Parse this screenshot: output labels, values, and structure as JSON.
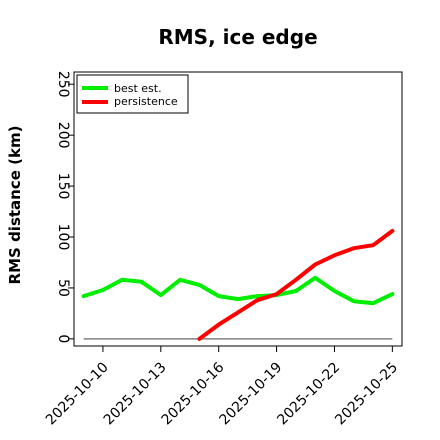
{
  "chart_data": {
    "type": "line",
    "title": "RMS, ice edge",
    "xlabel": "",
    "ylabel": "RMS distance (km)",
    "x": [
      "2025-10-09",
      "2025-10-10",
      "2025-10-11",
      "2025-10-12",
      "2025-10-13",
      "2025-10-14",
      "2025-10-15",
      "2025-10-16",
      "2025-10-17",
      "2025-10-18",
      "2025-10-19",
      "2025-10-20",
      "2025-10-21",
      "2025-10-22",
      "2025-10-23",
      "2025-10-24",
      "2025-10-25"
    ],
    "xticks": [
      "2025-10-10",
      "2025-10-13",
      "2025-10-16",
      "2025-10-19",
      "2025-10-22",
      "2025-10-25"
    ],
    "yticks": [
      0,
      50,
      100,
      150,
      200,
      250
    ],
    "ylim": [
      -7,
      262
    ],
    "xlim": [
      "2025-10-08T12:00",
      "2025-10-25T12:00"
    ],
    "grid": false,
    "legend_position": "top-left",
    "series": [
      {
        "name": "best est.",
        "color": "#00ee00",
        "values": [
          42,
          48,
          58,
          56,
          43,
          58,
          53,
          42,
          39,
          42,
          43,
          47,
          60,
          47,
          37,
          35,
          44
        ]
      },
      {
        "name": "persistence",
        "color": "#ff0000",
        "values": [
          null,
          null,
          null,
          null,
          null,
          null,
          0,
          14,
          26,
          38,
          44,
          58,
          73,
          82,
          89,
          92,
          106
        ]
      }
    ],
    "reference_line": {
      "y": 0,
      "color": "#808080"
    }
  }
}
